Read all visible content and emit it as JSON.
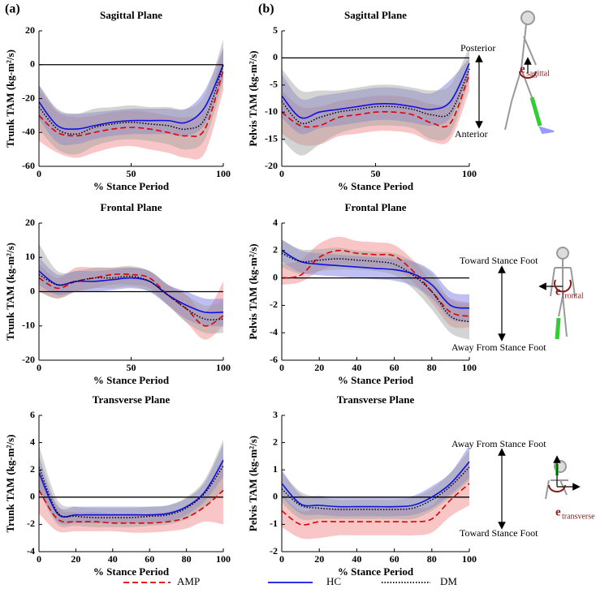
{
  "panel_labels": [
    "(a)",
    "(b)"
  ],
  "chart_data": [
    {
      "type": "line",
      "title": "Sagittal Plane",
      "xlabel": "% Stance Period",
      "ylabel": "Trunk TAM (kg-m²/s)",
      "x": [
        0,
        10,
        20,
        30,
        40,
        50,
        60,
        70,
        80,
        90,
        100
      ],
      "xlim": [
        0,
        100
      ],
      "xticks": [
        0,
        50,
        100
      ],
      "ylim": [
        -60,
        20
      ],
      "yticks": [
        -60,
        -40,
        -20,
        0,
        20
      ],
      "hline": 0,
      "series": [
        {
          "name": "AMP",
          "color": "#e00000",
          "band_color": "#f08080",
          "dash": "dashed",
          "values": [
            -30,
            -40,
            -42,
            -40,
            -38,
            -37,
            -38,
            -40,
            -42,
            -38,
            -3
          ],
          "lower": [
            -45,
            -52,
            -55,
            -52,
            -49,
            -48,
            -50,
            -52,
            -55,
            -52,
            -15
          ],
          "upper": [
            -15,
            -28,
            -31,
            -30,
            -28,
            -27,
            -28,
            -30,
            -31,
            -26,
            10
          ]
        },
        {
          "name": "HC",
          "color": "#1010e0",
          "band_color": "#7070e0",
          "dash": "solid",
          "values": [
            -22,
            -36,
            -38,
            -36,
            -34,
            -33,
            -33,
            -33,
            -34,
            -25,
            0
          ],
          "lower": [
            -32,
            -46,
            -47,
            -44,
            -42,
            -41,
            -41,
            -41,
            -42,
            -35,
            -8
          ],
          "upper": [
            -12,
            -27,
            -29,
            -28,
            -27,
            -26,
            -26,
            -26,
            -26,
            -15,
            10
          ]
        },
        {
          "name": "DM",
          "color": "#000000",
          "band_color": "#a0a0a0",
          "dash": "dotted",
          "values": [
            -25,
            -38,
            -41,
            -37,
            -35,
            -34,
            -35,
            -36,
            -38,
            -32,
            0
          ],
          "lower": [
            -38,
            -50,
            -53,
            -48,
            -45,
            -44,
            -45,
            -47,
            -50,
            -44,
            -10
          ],
          "upper": [
            -12,
            -26,
            -29,
            -26,
            -25,
            -24,
            -25,
            -25,
            -26,
            -18,
            15
          ]
        }
      ]
    },
    {
      "type": "line",
      "title": "Sagittal Plane",
      "xlabel": "% Stance Period",
      "ylabel": "Pelvis TAM (kg-m²/s)",
      "x": [
        0,
        10,
        20,
        30,
        40,
        50,
        60,
        70,
        80,
        90,
        100
      ],
      "xlim": [
        0,
        100
      ],
      "xticks": [
        0,
        50,
        100
      ],
      "ylim": [
        -20,
        5
      ],
      "yticks": [
        -20,
        -15,
        -10,
        -5,
        0,
        5
      ],
      "hline": 0,
      "annotations": [
        "Posterior",
        "Anterior"
      ],
      "vector_label": [
        "e",
        "sagittal"
      ],
      "series": [
        {
          "name": "AMP",
          "color": "#e00000",
          "band_color": "#f08080",
          "dash": "dashed",
          "values": [
            -10,
            -12.5,
            -12.5,
            -11,
            -10.5,
            -10,
            -10,
            -10.5,
            -12,
            -12,
            -3
          ],
          "lower": [
            -14,
            -16,
            -16,
            -14.5,
            -14,
            -13.5,
            -13.5,
            -14,
            -15.5,
            -15,
            -6
          ],
          "upper": [
            -6,
            -9,
            -9,
            -8,
            -7.5,
            -7,
            -7,
            -7.5,
            -8.5,
            -8,
            -1
          ]
        },
        {
          "name": "HC",
          "color": "#1010e0",
          "band_color": "#7070e0",
          "dash": "solid",
          "values": [
            -7,
            -11,
            -10,
            -9.5,
            -9,
            -8.5,
            -8.5,
            -9,
            -9.5,
            -8,
            -1
          ],
          "lower": [
            -11,
            -14,
            -13,
            -12.5,
            -12,
            -11.5,
            -11.5,
            -12,
            -12.5,
            -11,
            -3
          ],
          "upper": [
            -3,
            -7.5,
            -7,
            -6.5,
            -6,
            -5.5,
            -5.5,
            -6,
            -6.5,
            -4,
            0
          ]
        },
        {
          "name": "DM",
          "color": "#000000",
          "band_color": "#a0a0a0",
          "dash": "dotted",
          "values": [
            -8,
            -12,
            -11,
            -10,
            -9.5,
            -9,
            -9,
            -9.5,
            -10.5,
            -10,
            -2
          ],
          "lower": [
            -15,
            -18,
            -16,
            -14,
            -13,
            -12.5,
            -12.5,
            -13,
            -15,
            -14,
            -4
          ],
          "upper": [
            -2,
            -6,
            -6,
            -6,
            -5.5,
            -5,
            -5,
            -5.5,
            -6,
            -5,
            2
          ]
        }
      ]
    },
    {
      "type": "line",
      "title": "Frontal Plane",
      "xlabel": "% Stance Period",
      "ylabel": "Trunk TAM (kg-m²/s)",
      "x": [
        0,
        10,
        20,
        30,
        40,
        50,
        60,
        70,
        80,
        90,
        100
      ],
      "xlim": [
        0,
        100
      ],
      "xticks": [
        0,
        50,
        100
      ],
      "ylim": [
        -20,
        20
      ],
      "yticks": [
        -20,
        -10,
        0,
        10,
        20
      ],
      "hline": 0,
      "series": [
        {
          "name": "AMP",
          "color": "#e00000",
          "band_color": "#f08080",
          "dash": "dashed",
          "values": [
            4,
            1,
            3,
            4,
            5,
            5,
            4,
            -1,
            -5,
            -10,
            -7
          ],
          "lower": [
            0,
            -2,
            0,
            1,
            2,
            2,
            1,
            -4,
            -9,
            -14,
            -10
          ],
          "upper": [
            8,
            4,
            7,
            7,
            7,
            7,
            6,
            2,
            -1,
            -6,
            3
          ]
        },
        {
          "name": "HC",
          "color": "#1010e0",
          "band_color": "#7070e0",
          "dash": "solid",
          "values": [
            6,
            2,
            3,
            3,
            3.5,
            4,
            3,
            -1,
            -4,
            -6,
            -6
          ],
          "lower": [
            2,
            -1,
            0,
            0,
            0.5,
            1,
            0,
            -4,
            -8,
            -10,
            -10
          ],
          "upper": [
            10,
            5,
            6,
            6,
            6.5,
            7,
            6,
            2,
            0,
            -2,
            -2
          ]
        },
        {
          "name": "DM",
          "color": "#000000",
          "band_color": "#a0a0a0",
          "dash": "dotted",
          "values": [
            5,
            2,
            3,
            4,
            4,
            4.5,
            3,
            -1,
            -5,
            -8,
            -8
          ],
          "lower": [
            0,
            -2,
            0,
            1,
            1,
            1.5,
            0,
            -4,
            -9,
            -12,
            -12
          ],
          "upper": [
            14,
            6,
            6,
            7,
            7,
            7.5,
            6,
            2,
            -1,
            -4,
            -3
          ]
        }
      ]
    },
    {
      "type": "line",
      "title": "Frontal Plane",
      "xlabel": "% Stance Period",
      "ylabel": "Pelvis TAM (kg-m²/s)",
      "x": [
        0,
        10,
        20,
        30,
        40,
        50,
        60,
        70,
        80,
        90,
        100
      ],
      "xlim": [
        0,
        100
      ],
      "xticks": [
        0,
        20,
        40,
        60,
        80,
        100
      ],
      "ylim": [
        -6,
        4
      ],
      "yticks": [
        -6,
        -4,
        -2,
        0,
        2,
        4
      ],
      "hline": 0,
      "annotations": [
        "Toward Stance Foot",
        "Away From Stance Foot"
      ],
      "vector_label": [
        "e",
        "frontal"
      ],
      "series": [
        {
          "name": "AMP",
          "color": "#e00000",
          "band_color": "#f08080",
          "dash": "dashed",
          "values": [
            0,
            0.2,
            1.5,
            2,
            1.8,
            1.7,
            1.6,
            0.5,
            -1,
            -2.5,
            -2.8
          ],
          "lower": [
            -0.5,
            -0.3,
            0.5,
            1,
            0.9,
            0.8,
            0.7,
            -0.3,
            -1.8,
            -3.5,
            -3.6
          ],
          "upper": [
            1,
            1.3,
            2.5,
            3,
            2.7,
            2.6,
            2.4,
            1.3,
            -0.3,
            -1.5,
            -1.8
          ]
        },
        {
          "name": "HC",
          "color": "#1010e0",
          "band_color": "#7070e0",
          "dash": "solid",
          "values": [
            2,
            1.2,
            1,
            0.9,
            0.8,
            0.7,
            0.6,
            0.3,
            -0.5,
            -2,
            -2.2
          ],
          "lower": [
            1.2,
            0.4,
            0.2,
            0.1,
            0,
            -0.1,
            -0.2,
            -0.6,
            -1.5,
            -3,
            -3.2
          ],
          "upper": [
            2.8,
            2,
            1.8,
            1.7,
            1.6,
            1.5,
            1.4,
            1.2,
            0.5,
            -1,
            -1.2
          ]
        },
        {
          "name": "DM",
          "color": "#000000",
          "band_color": "#a0a0a0",
          "dash": "dotted",
          "values": [
            1.8,
            1.2,
            1.3,
            1.4,
            1.3,
            1.2,
            1,
            0.2,
            -1,
            -2.8,
            -3.2
          ],
          "lower": [
            0.8,
            0.3,
            0.5,
            0.6,
            0.6,
            0.5,
            0.2,
            -0.8,
            -2.3,
            -4,
            -4.5
          ],
          "upper": [
            2.8,
            2.1,
            2.1,
            2.2,
            2,
            1.9,
            1.8,
            1.2,
            0.3,
            -1.6,
            -1.9
          ]
        }
      ]
    },
    {
      "type": "line",
      "title": "Transverse Plane",
      "xlabel": "% Stance Period",
      "ylabel": "Trunk TAM (kg-m²/s)",
      "x": [
        0,
        10,
        20,
        30,
        40,
        50,
        60,
        70,
        80,
        90,
        100
      ],
      "xlim": [
        0,
        100
      ],
      "xticks": [
        0,
        20,
        40,
        60,
        80,
        100
      ],
      "ylim": [
        -4,
        6
      ],
      "yticks": [
        -4,
        -2,
        0,
        2,
        4,
        6
      ],
      "hline": 0,
      "series": [
        {
          "name": "AMP",
          "color": "#e00000",
          "band_color": "#f08080",
          "dash": "dashed",
          "values": [
            0.5,
            -1.6,
            -1.8,
            -1.8,
            -1.9,
            -1.9,
            -1.9,
            -1.8,
            -1.5,
            -0.7,
            0.5
          ],
          "lower": [
            -1.2,
            -2.5,
            -2.5,
            -2.5,
            -2.5,
            -2.6,
            -2.6,
            -2.5,
            -2.3,
            -1.8,
            -2
          ],
          "upper": [
            2.2,
            -0.7,
            -1.1,
            -1.1,
            -1.2,
            -1.2,
            -1.2,
            -1.1,
            -0.7,
            0.4,
            3
          ]
        },
        {
          "name": "HC",
          "color": "#1010e0",
          "band_color": "#7070e0",
          "dash": "solid",
          "values": [
            1.8,
            -1.2,
            -1.3,
            -1.3,
            -1.3,
            -1.3,
            -1.3,
            -1.2,
            -0.7,
            0.4,
            2.7
          ],
          "lower": [
            0.5,
            -1.8,
            -1.9,
            -1.9,
            -1.9,
            -1.9,
            -1.9,
            -1.8,
            -1.3,
            -0.3,
            1.5
          ],
          "upper": [
            3,
            -0.6,
            -0.7,
            -0.7,
            -0.7,
            -0.7,
            -0.7,
            -0.6,
            -0.1,
            1.1,
            3.9
          ]
        },
        {
          "name": "DM",
          "color": "#000000",
          "band_color": "#a0a0a0",
          "dash": "dotted",
          "values": [
            2.2,
            -1.1,
            -1.4,
            -1.5,
            -1.5,
            -1.5,
            -1.4,
            -1.3,
            -0.8,
            0.3,
            2.3
          ],
          "lower": [
            0.5,
            -2,
            -2.1,
            -2.2,
            -2.2,
            -2.2,
            -2.1,
            -2,
            -1.6,
            -0.7,
            0.5
          ],
          "upper": [
            3.8,
            -0.2,
            -0.7,
            -0.8,
            -0.8,
            -0.8,
            -0.7,
            -0.6,
            0,
            1.3,
            4.2
          ]
        }
      ]
    },
    {
      "type": "line",
      "title": "Transverse Plane",
      "xlabel": "% Stance Period",
      "ylabel": "Pelvis TAM (kg-m²/s)",
      "x": [
        0,
        10,
        20,
        30,
        40,
        50,
        60,
        70,
        80,
        90,
        100
      ],
      "xlim": [
        0,
        100
      ],
      "xticks": [
        0,
        20,
        40,
        60,
        80,
        100
      ],
      "ylim": [
        -2,
        3
      ],
      "yticks": [
        -2,
        -1,
        0,
        1,
        2,
        3
      ],
      "hline": 0,
      "annotations": [
        "Away From Stance Foot",
        "Toward Stance Foot"
      ],
      "vector_label": [
        "e",
        "transverse"
      ],
      "series": [
        {
          "name": "AMP",
          "color": "#e00000",
          "band_color": "#f08080",
          "dash": "dashed",
          "values": [
            -0.5,
            -1,
            -0.9,
            -0.9,
            -0.9,
            -0.9,
            -0.9,
            -0.9,
            -0.8,
            -0.1,
            0.5
          ],
          "lower": [
            -1.1,
            -1.5,
            -1.5,
            -1.4,
            -1.4,
            -1.4,
            -1.4,
            -1.4,
            -1.3,
            -0.7,
            -0.3
          ],
          "upper": [
            0.1,
            -0.5,
            -0.4,
            -0.4,
            -0.4,
            -0.4,
            -0.4,
            -0.4,
            -0.3,
            0.5,
            1.3
          ]
        },
        {
          "name": "HC",
          "color": "#1010e0",
          "band_color": "#7070e0",
          "dash": "solid",
          "values": [
            0.5,
            -0.25,
            -0.3,
            -0.35,
            -0.35,
            -0.35,
            -0.35,
            -0.3,
            0,
            0.5,
            1.3
          ],
          "lower": [
            0,
            -0.6,
            -0.65,
            -0.7,
            -0.7,
            -0.7,
            -0.7,
            -0.65,
            -0.4,
            0.1,
            0.7
          ],
          "upper": [
            1,
            0.1,
            0.05,
            0,
            0,
            0,
            0,
            0.05,
            0.4,
            0.9,
            1.9
          ]
        },
        {
          "name": "DM",
          "color": "#000000",
          "band_color": "#a0a0a0",
          "dash": "dotted",
          "values": [
            0.3,
            -0.3,
            -0.4,
            -0.45,
            -0.45,
            -0.45,
            -0.45,
            -0.4,
            -0.1,
            0.4,
            1.1
          ],
          "lower": [
            -0.2,
            -0.8,
            -0.8,
            -0.8,
            -0.8,
            -0.8,
            -0.8,
            -0.8,
            -0.5,
            0,
            0.6
          ],
          "upper": [
            0.9,
            0.2,
            0,
            -0.1,
            -0.1,
            -0.1,
            -0.1,
            0,
            0.3,
            0.9,
            1.7
          ]
        }
      ]
    }
  ]
}
